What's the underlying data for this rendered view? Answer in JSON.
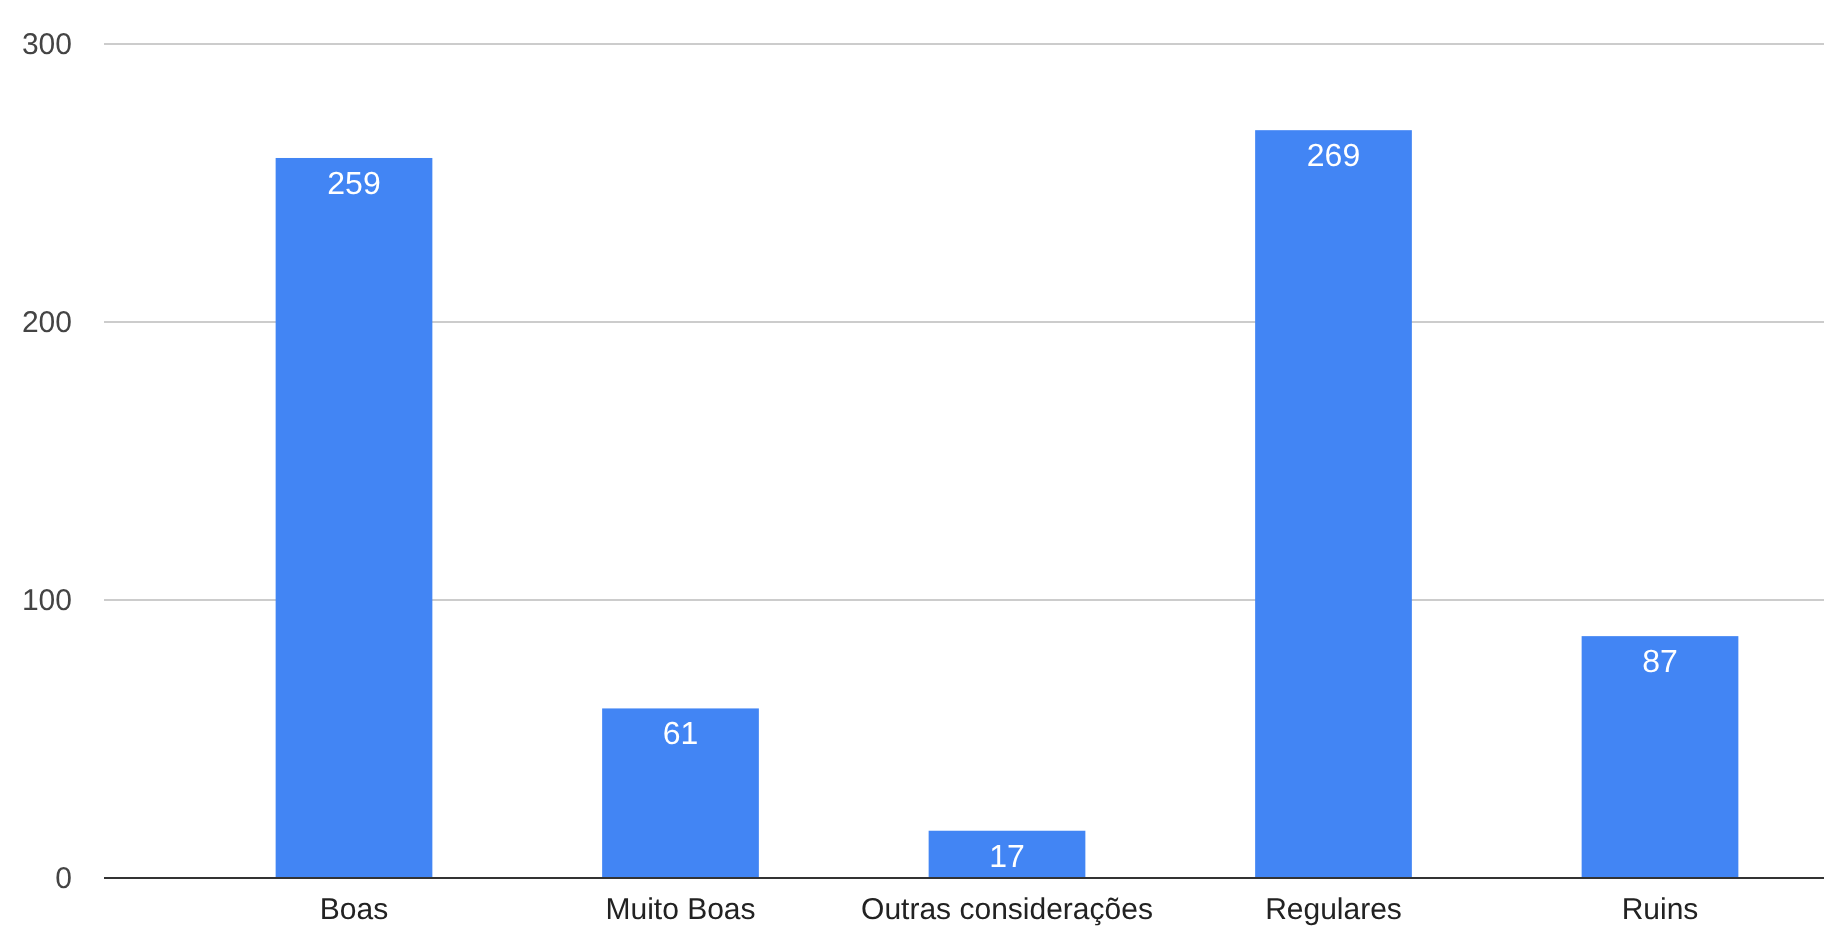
{
  "chart_data": {
    "type": "bar",
    "categories": [
      "Boas",
      "Muito Boas",
      "Outras considerações",
      "Regulares",
      "Ruins"
    ],
    "values": [
      259,
      61,
      17,
      269,
      87
    ],
    "color": "#4285f4",
    "ylim": [
      0,
      300
    ],
    "yticks": [
      0,
      100,
      200,
      300
    ],
    "grid": "y",
    "data_labels": true
  }
}
